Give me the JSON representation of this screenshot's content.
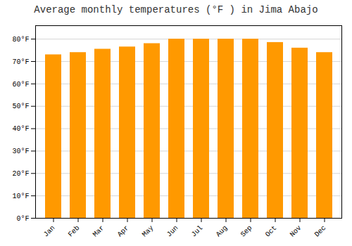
{
  "chart_data": {
    "type": "bar",
    "title": "Average monthly temperatures (°F ) in Jima Abajo",
    "categories": [
      "Jan",
      "Feb",
      "Mar",
      "Apr",
      "May",
      "Jun",
      "Jul",
      "Aug",
      "Sep",
      "Oct",
      "Nov",
      "Dec"
    ],
    "values": [
      73,
      74,
      75.5,
      76.5,
      78,
      80,
      80,
      80,
      80,
      78.5,
      76,
      74
    ],
    "color": "#FF9900",
    "ylim": [
      0,
      86
    ],
    "yticks": [
      {
        "value": 0,
        "label": "0°F"
      },
      {
        "value": 10,
        "label": "10°F"
      },
      {
        "value": 20,
        "label": "20°F"
      },
      {
        "value": 30,
        "label": "30°F"
      },
      {
        "value": 40,
        "label": "40°F"
      },
      {
        "value": 50,
        "label": "50°F"
      },
      {
        "value": 60,
        "label": "60°F"
      },
      {
        "value": 70,
        "label": "70°F"
      },
      {
        "value": 80,
        "label": "80°F"
      }
    ],
    "grid": true
  }
}
